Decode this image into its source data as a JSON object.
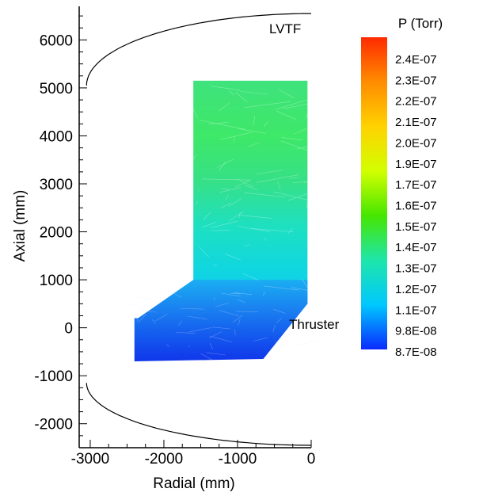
{
  "chart_data": {
    "type": "heatmap",
    "xlabel": "Radial (mm)",
    "ylabel": "Axial (mm)",
    "xlim": [
      -3150,
      0
    ],
    "ylim": [
      -2500,
      6700
    ],
    "x_ticks": [
      -3000,
      -2000,
      -1000,
      0
    ],
    "y_ticks": [
      -2000,
      -1000,
      0,
      1000,
      2000,
      3000,
      4000,
      5000,
      6000
    ],
    "annotations": {
      "chamber_label": "LVTF",
      "thruster_label": "Thruster"
    },
    "colorbar": {
      "title": "P  (Torr)",
      "colors": [
        "#ff2a00",
        "#ff8c00",
        "#ffd200",
        "#d2ff00",
        "#46e600",
        "#1ee6aa",
        "#00c8ff",
        "#0a2aff"
      ],
      "labels": [
        "2.4E-07",
        "2.3E-07",
        "2.2E-07",
        "2.1E-07",
        "2.0E-07",
        "1.9E-07",
        "1.7E-07",
        "1.6E-07",
        "1.5E-07",
        "1.4E-07",
        "1.3E-07",
        "1.2E-07",
        "1.1E-07",
        "9.8E-08",
        "8.7E-08"
      ]
    },
    "regions": [
      {
        "name": "upper-column",
        "x": [
          -1600,
          -50
        ],
        "y": [
          5100,
          4200
        ],
        "p_top": "1.6E-07",
        "p_bottom": "1.6E-07"
      },
      {
        "name": "mid-column",
        "x": [
          -1600,
          -50
        ],
        "y": [
          4200,
          2400
        ],
        "p_top": "1.6E-07",
        "p_bottom": "1.5E-07"
      },
      {
        "name": "lower-column",
        "x": [
          -1600,
          -50
        ],
        "y": [
          2400,
          500
        ],
        "p_top": "1.4E-07",
        "p_bottom": "1.2E-07"
      },
      {
        "name": "thruster-plume",
        "x": [
          -2400,
          -50
        ],
        "y": [
          1000,
          -700
        ],
        "p_top": "1.2E-07",
        "p_bottom": "8.7E-08"
      }
    ]
  }
}
